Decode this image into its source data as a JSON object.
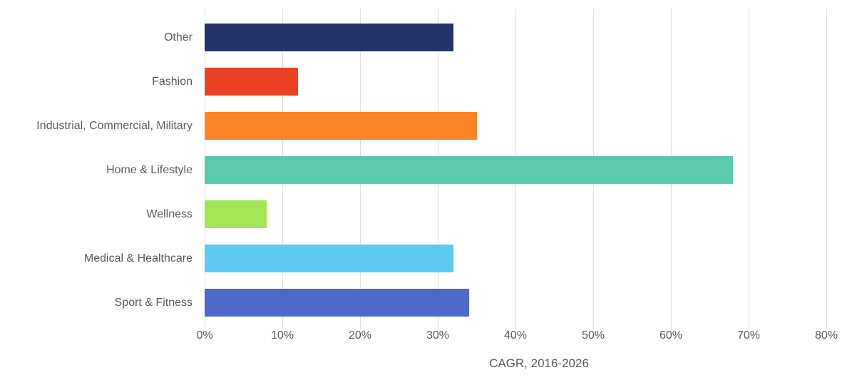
{
  "chart_data": {
    "type": "bar",
    "orientation": "horizontal",
    "title": "",
    "xlabel": "CAGR, 2016-2026",
    "ylabel": "",
    "categories": [
      "Other",
      "Fashion",
      "Industrial, Commercial, Military",
      "Home & Lifestyle",
      "Wellness",
      "Medical & Healthcare",
      "Sport & Fitness"
    ],
    "values": [
      32,
      12,
      35,
      68,
      8,
      32,
      34
    ],
    "bar_colors": [
      "#233268",
      "#EB4226",
      "#FB8427",
      "#5ACAAD",
      "#A4E556",
      "#5CCAF1",
      "#4D69CA"
    ],
    "xlim": [
      0,
      80
    ],
    "x_tick_values": [
      0,
      10,
      20,
      30,
      40,
      50,
      60,
      70,
      80
    ],
    "x_ticks": [
      "0%",
      "10%",
      "20%",
      "30%",
      "40%",
      "50%",
      "60%",
      "70%",
      "80%"
    ],
    "grid": "vertical",
    "legend": "none"
  },
  "colors": {
    "background": "#FFFFFF",
    "gridline": "#E0E0E0",
    "text": "#595959"
  }
}
